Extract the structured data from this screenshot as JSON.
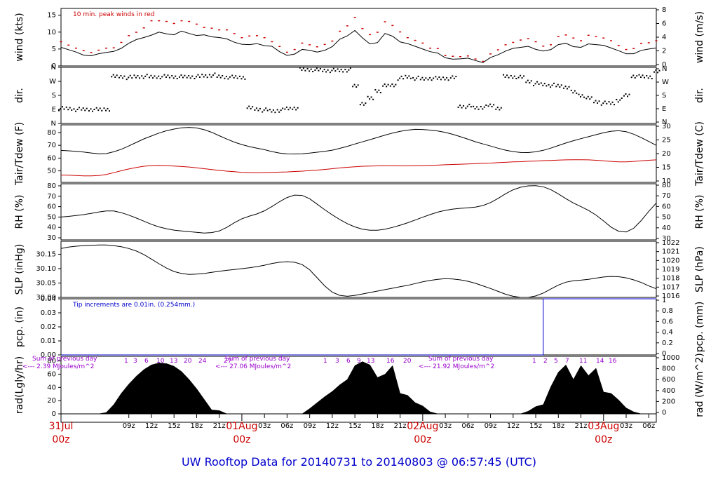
{
  "colors": {
    "primary_line": "#000000",
    "dewpoint_line": "#cc0000",
    "peak_wind": "#cc0000",
    "precip_line": "#0000cc",
    "rad_notes": "#9900cc",
    "day_labels": "#cc0000",
    "footer": "#0000cc"
  },
  "footer": {
    "title": "UW Rooftop Data for 20140731  to  20140803 @ 06:57:45  (UTC)"
  },
  "chart_data": {
    "type": "line",
    "x_axis": {
      "start_hour": 0,
      "end_hour": 79,
      "time_ticks": [
        "09z",
        "12z",
        "15z",
        "18z",
        "21z",
        "03z",
        "06z",
        "09z",
        "12z",
        "15z",
        "18z",
        "21z",
        "03z",
        "06z",
        "09z",
        "12z",
        "15z",
        "18z",
        "21z",
        "03z",
        "06z"
      ],
      "day_labels": [
        {
          "top": "31Jul",
          "bottom": "00z"
        },
        {
          "top": "01Aug",
          "bottom": "00z"
        },
        {
          "top": "02Aug",
          "bottom": "00z"
        },
        {
          "top": "03Aug",
          "bottom": "00z"
        }
      ]
    },
    "panels": [
      {
        "id": "wind",
        "left_label": "wind (kts)",
        "right_label": "wind (m/s)",
        "left_ticks": [
          "0",
          "5",
          "10",
          "15"
        ],
        "left_range": [
          0,
          17
        ],
        "right_ticks": [
          "0",
          "2",
          "4",
          "6",
          "8"
        ],
        "note": "10 min. peak winds in red",
        "series": [
          {
            "color": "black",
            "values": [
              5.5,
              4.8,
              4.1,
              3.2,
              3.0,
              3.6,
              4.0,
              4.3,
              5.2,
              6.7,
              7.8,
              8.4,
              9.1,
              10.0,
              9.5,
              9.2,
              10.3,
              9.6,
              9.0,
              9.2,
              8.6,
              8.4,
              8.0,
              7.0,
              6.4,
              6.3,
              6.6,
              6.0,
              5.8,
              4.2,
              3.1,
              3.5,
              4.9,
              4.6,
              4.1,
              4.6,
              5.7,
              7.9,
              8.9,
              10.5,
              8.3,
              6.5,
              6.9,
              9.6,
              8.8,
              7.1,
              6.6,
              5.8,
              5.0,
              4.2,
              3.8,
              2.4,
              2.0,
              2.1,
              2.3,
              1.6,
              1.0,
              2.5,
              3.3,
              4.4,
              5.2,
              5.5,
              5.8,
              4.9,
              4.4,
              4.8,
              6.3,
              6.7,
              5.7,
              5.5,
              6.5,
              6.3,
              6.1,
              5.3,
              4.5,
              3.6,
              3.6,
              4.6,
              5.0,
              5.3
            ]
          }
        ],
        "peaks": {
          "color": "red",
          "values": [
            7.1,
            6.1,
            5.2,
            4.5,
            3.9,
            4.6,
            5.2,
            5.3,
            6.9,
            8.9,
            9.9,
            11.2,
            13.3,
            13.3,
            13.1,
            12.5,
            13.3,
            13.1,
            12.3,
            11.3,
            11.1,
            10.6,
            10.6,
            9.5,
            8.3,
            8.8,
            8.9,
            8.3,
            7.1,
            5.7,
            4.0,
            4.8,
            6.7,
            6.2,
            5.6,
            6.3,
            7.3,
            10.2,
            11.8,
            14.3,
            11.0,
            9.2,
            9.9,
            13.0,
            11.9,
            10.0,
            8.3,
            7.5,
            6.7,
            5.2,
            5.1,
            3.0,
            2.8,
            2.7,
            2.9,
            2.0,
            1.3,
            3.5,
            4.7,
            6.2,
            6.9,
            7.6,
            8.0,
            7.1,
            5.8,
            6.2,
            8.6,
            9.1,
            8.2,
            7.4,
            9.0,
            8.6,
            8.2,
            7.4,
            6.0,
            4.8,
            5.1,
            6.6,
            6.8,
            7.4
          ]
        }
      },
      {
        "id": "dir",
        "left_label": "dir.",
        "right_label": "dir.",
        "left_ticks": [
          "N",
          "E",
          "S",
          "W",
          "N"
        ],
        "left_range": [
          0,
          360
        ],
        "right_ticks": [
          "N",
          "E",
          "S",
          "W",
          "N"
        ],
        "series": [
          {
            "color": "black",
            "values": [
              95,
              95,
              90,
              90,
              90,
              88,
              92,
              300,
              300,
              295,
              300,
              302,
              298,
              300,
              300,
              300,
              298,
              300,
              300,
              305,
              310,
              300,
              298,
              296,
              296,
              98,
              92,
              86,
              80,
              85,
              95,
              100,
              345,
              345,
              342,
              340,
              340,
              340,
              343,
              240,
              130,
              160,
              210,
              240,
              246,
              290,
              298,
              290,
              285,
              290,
              288,
              290,
              292,
              110,
              110,
              100,
              105,
              114,
              100,
              300,
              300,
              295,
              270,
              255,
              250,
              245,
              240,
              235,
              200,
              180,
              160,
              140,
              130,
              130,
              150,
              180,
              305,
              300,
              300,
              330
            ]
          }
        ]
      },
      {
        "id": "temp",
        "left_label": "Tair/Tdew (F)",
        "right_label": "Tair/Tdew (C)",
        "left_ticks": [
          "50",
          "60",
          "70",
          "80"
        ],
        "left_range": [
          41,
          86
        ],
        "right_ticks": [
          "10",
          "15",
          "20",
          "25",
          "30"
        ],
        "series": [
          {
            "name": "Tair",
            "color": "black",
            "values": [
              66.0,
              65.7,
              65.3,
              64.7,
              64.0,
              63.4,
              63.5,
              64.9,
              66.9,
              69.5,
              72.3,
              75.0,
              77.3,
              79.6,
              81.4,
              82.7,
              83.7,
              84.0,
              83.6,
              82.2,
              80.2,
              77.5,
              74.9,
              72.5,
              70.6,
              69.0,
              67.8,
              66.6,
              65.1,
              63.9,
              63.3,
              63.2,
              63.4,
              63.9,
              64.6,
              65.3,
              66.2,
              67.6,
              69.2,
              71.0,
              72.7,
              74.4,
              76.2,
              78.0,
              79.6,
              80.9,
              81.9,
              82.5,
              82.4,
              81.9,
              81.2,
              80.1,
              78.6,
              76.7,
              74.8,
              72.8,
              71.1,
              69.4,
              67.7,
              66.2,
              65.1,
              64.4,
              64.3,
              64.9,
              66.1,
              67.8,
              69.8,
              71.8,
              73.6,
              75.2,
              76.7,
              78.3,
              79.8,
              81.0,
              81.4,
              80.6,
              78.7,
              76.0,
              73.0,
              70.0
            ]
          },
          {
            "name": "Tdew",
            "color": "red",
            "values": [
              46.7,
              46.6,
              46.3,
              46.1,
              46.1,
              46.4,
              47.2,
              48.6,
              50.1,
              51.5,
              52.7,
              53.6,
              54.1,
              54.3,
              54.1,
              53.8,
              53.4,
              53.0,
              52.4,
              51.7,
              51.0,
              50.4,
              49.8,
              49.4,
              48.8,
              48.7,
              48.6,
              48.7,
              48.8,
              49.0,
              49.2,
              49.5,
              49.8,
              50.2,
              50.6,
              51.1,
              51.7,
              52.3,
              52.8,
              53.2,
              53.6,
              53.8,
              53.9,
              54.0,
              54.0,
              53.9,
              53.9,
              54.0,
              54.1,
              54.3,
              54.5,
              54.8,
              55.0,
              55.2,
              55.4,
              55.6,
              55.9,
              56.1,
              56.4,
              56.7,
              57.0,
              57.2,
              57.5,
              57.7,
              58.0,
              58.2,
              58.4,
              58.6,
              58.7,
              58.7,
              58.6,
              58.3,
              57.9,
              57.4,
              57.1,
              57.1,
              57.4,
              57.9,
              58.3,
              58.6
            ]
          }
        ]
      },
      {
        "id": "rh",
        "left_label": "RH (%)",
        "right_label": "RH (%)",
        "left_ticks": [
          "30",
          "40",
          "50",
          "60",
          "70",
          "80"
        ],
        "left_range": [
          28,
          82
        ],
        "right_ticks": [
          "30",
          "40",
          "50",
          "60",
          "70",
          "80"
        ],
        "series": [
          {
            "color": "black",
            "values": [
              50.0,
              50.6,
              51.5,
              52.3,
              53.5,
              54.8,
              55.8,
              55.8,
              54.2,
              51.8,
              49.0,
              46.0,
              43.0,
              40.5,
              38.7,
              37.4,
              36.6,
              35.9,
              35.2,
              34.6,
              35.0,
              36.6,
              40.0,
              44.5,
              48.3,
              50.9,
              53.0,
              56.0,
              60.1,
              64.8,
              68.8,
              71.1,
              70.8,
              67.6,
              62.3,
              57.0,
              52.1,
              47.6,
              43.6,
              40.5,
              38.3,
              37.3,
              37.3,
              38.3,
              40.0,
              42.1,
              44.5,
              47.1,
              49.8,
              52.4,
              54.7,
              56.4,
              57.6,
              58.4,
              58.9,
              59.6,
              61.1,
              63.9,
              67.9,
              72.4,
              76.2,
              78.7,
              80.0,
              80.2,
              79.1,
              76.4,
              72.3,
              67.7,
              63.5,
              60.0,
              56.4,
              51.9,
              46.2,
              40.3,
              36.3,
              35.6,
              39.2,
              46.6,
              55.5,
              63.5
            ]
          }
        ]
      },
      {
        "id": "slp",
        "left_label": "SLP (inHg)",
        "right_label": "SLP (hPa)",
        "left_ticks": [
          "30.00",
          "30.05",
          "30.10",
          "30.15"
        ],
        "left_range": [
          30.0,
          30.195
        ],
        "right_ticks": [
          "1016",
          "1017",
          "1018",
          "1019",
          "1020",
          "1021",
          "1022"
        ],
        "series": [
          {
            "color": "black",
            "values": [
              30.17,
              30.175,
              30.178,
              30.18,
              30.181,
              30.182,
              30.182,
              30.18,
              30.176,
              30.17,
              30.161,
              30.149,
              30.133,
              30.117,
              30.102,
              30.09,
              30.083,
              30.08,
              30.081,
              30.083,
              30.087,
              30.091,
              30.094,
              30.097,
              30.1,
              30.103,
              30.107,
              30.112,
              30.118,
              30.122,
              30.124,
              30.122,
              30.114,
              30.096,
              30.068,
              30.04,
              30.018,
              30.007,
              30.004,
              30.007,
              30.012,
              30.017,
              30.022,
              30.027,
              30.032,
              30.037,
              30.042,
              30.048,
              30.054,
              30.059,
              30.063,
              30.065,
              30.064,
              30.061,
              30.056,
              30.049,
              30.04,
              30.031,
              30.021,
              30.011,
              30.004,
              30.0,
              30.0,
              30.005,
              30.015,
              30.029,
              30.043,
              30.053,
              30.058,
              30.06,
              30.063,
              30.067,
              30.071,
              30.073,
              30.072,
              30.068,
              30.061,
              30.052,
              30.04,
              30.03
            ]
          }
        ]
      },
      {
        "id": "pcp",
        "left_label": "pcp. (in)",
        "right_label": "pcp. (mm)",
        "left_ticks": [
          "0.00",
          "0.01",
          "0.02",
          "0.03",
          "0.04"
        ],
        "left_range": [
          0,
          0.04
        ],
        "right_ticks": [
          "0",
          "0.2",
          "0.4",
          "0.6",
          "0.8",
          "1"
        ],
        "note": "Tip increments are 0.01in. (0.254mm.)",
        "series": [
          {
            "color": "blue",
            "values": [
              0,
              0,
              0,
              0,
              0,
              0,
              0,
              0,
              0,
              0,
              0,
              0,
              0,
              0,
              0,
              0,
              0,
              0,
              0,
              0,
              0,
              0,
              0,
              0,
              0,
              0,
              0,
              0,
              0,
              0,
              0,
              0,
              0,
              0,
              0,
              0,
              0,
              0,
              0,
              0,
              0,
              0,
              0,
              0,
              0,
              0,
              0,
              0,
              0,
              0,
              0,
              0,
              0,
              0,
              0,
              0,
              0,
              0,
              0,
              0,
              0,
              0,
              0,
              0,
              0.04,
              0.04,
              0.04,
              0.04,
              0.04,
              0.04,
              0.04,
              0.04,
              0.04,
              0.04,
              0.04,
              0.04,
              0.04,
              0.04,
              0.04,
              0.04
            ]
          }
        ]
      },
      {
        "id": "rad",
        "left_label": "rad(Lgly/hr)",
        "right_label": "rad (W/m^2)",
        "left_ticks": [
          "0",
          "20",
          "40",
          "60",
          "80"
        ],
        "left_range": [
          0,
          87
        ],
        "right_ticks": [
          "0",
          "200",
          "400",
          "600",
          "800",
          "1000"
        ],
        "series": [
          {
            "color": "black",
            "fill": true,
            "values": [
              0,
              0,
              0,
              0,
              0,
              0,
              2,
              14,
              31,
              45,
              57,
              67,
              74,
              77,
              76,
              72,
              64,
              52,
              38,
              22,
              6,
              5,
              0,
              0,
              0,
              0,
              0,
              0,
              0,
              0,
              0,
              0,
              0,
              8,
              17,
              26,
              34,
              44,
              52,
              73,
              79,
              74,
              55,
              60,
              73,
              31,
              28,
              17,
              12,
              3,
              0,
              0,
              0,
              0,
              0,
              0,
              0,
              0,
              0,
              0,
              0,
              0,
              4,
              11,
              14,
              41,
              63,
              74,
              52,
              73,
              58,
              69,
              33,
              31,
              21,
              9,
              3,
              0,
              0,
              0
            ]
          }
        ],
        "hour_markers": [
          "1",
          "3",
          "6",
          "10",
          "13",
          "20",
          "24",
          "27",
          "1",
          "3",
          "6",
          "9",
          "13",
          "16",
          "20",
          "1",
          "2",
          "5",
          "7",
          "11",
          "14",
          "16"
        ],
        "notes": [
          {
            "line1": "Sum of previous day",
            "line2": "<--- 2.39 MJoules/m^2"
          },
          {
            "line1": "Sum of previous day",
            "line2": "<--- 27.06 MJoules/m^2"
          },
          {
            "line1": "Sum of previous day",
            "line2": "<--- 21.92 MJoules/m^2"
          }
        ]
      }
    ]
  }
}
